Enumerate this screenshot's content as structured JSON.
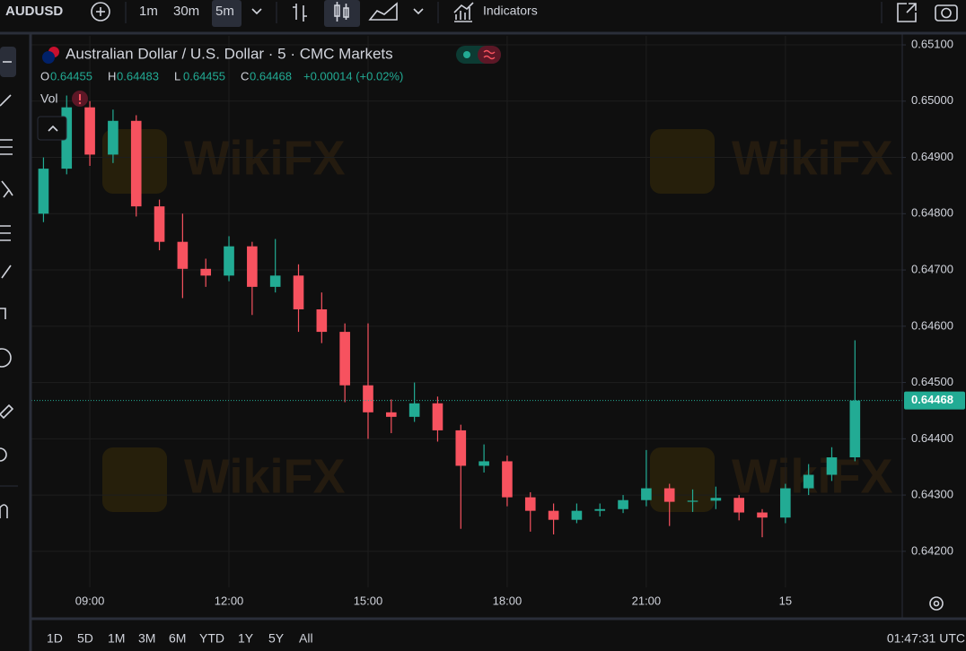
{
  "toolbar": {
    "symbol": "AUDUSD",
    "intervals": [
      "1m",
      "30m",
      "5m"
    ],
    "indicators": "Indicators"
  },
  "legend": {
    "title": "Australian Dollar / U.S. Dollar · 5 · CMC Markets",
    "ohlc": [
      {
        "key": "O",
        "value": "0.64455"
      },
      {
        "key": "H",
        "value": "0.64483"
      },
      {
        "key": "L",
        "value": "0.64455"
      },
      {
        "key": "C",
        "value": "0.64468"
      }
    ],
    "change": "+0.00014 (+0.02%)",
    "volume": "Vol"
  },
  "watermark": "WikiFX",
  "footer": {
    "ranges": [
      "1D",
      "5D",
      "1M",
      "3M",
      "6M",
      "YTD",
      "1Y",
      "5Y",
      "All"
    ],
    "clock": "01:47:31 UTC"
  },
  "chart_data": {
    "type": "candlestick",
    "x": [
      8,
      8.5,
      9,
      9.5,
      10,
      10.5,
      11,
      11.5,
      12,
      12.5,
      13,
      13.5,
      14,
      14.5,
      15,
      15.5,
      16,
      16.5,
      17,
      17.5,
      18,
      18.5,
      19,
      19.5,
      20,
      20.5,
      21,
      21.5,
      22,
      22.5,
      23,
      23.5,
      24,
      24.5,
      25,
      25.5
    ],
    "open": [
      0.648,
      0.6488,
      0.64989,
      0.64905,
      0.64965,
      0.64813,
      0.6475,
      0.64702,
      0.6469,
      0.64742,
      0.6467,
      0.6469,
      0.6463,
      0.6459,
      0.64495,
      0.64447,
      0.64439,
      0.64463,
      0.64415,
      0.64352,
      0.6436,
      0.64296,
      0.64272,
      0.64256,
      0.64272,
      0.64275,
      0.64291,
      0.64312,
      0.64288,
      0.6429,
      0.64295,
      0.64269,
      0.6426,
      0.64312,
      0.64336,
      0.64367
    ],
    "high": [
      0.649,
      0.6501,
      0.65,
      0.64985,
      0.64975,
      0.64825,
      0.648,
      0.6472,
      0.6476,
      0.6475,
      0.64755,
      0.6471,
      0.6466,
      0.64605,
      0.64605,
      0.6447,
      0.645,
      0.64475,
      0.64425,
      0.6439,
      0.6437,
      0.64305,
      0.64285,
      0.64285,
      0.64285,
      0.643,
      0.6438,
      0.6432,
      0.6431,
      0.64315,
      0.643,
      0.64275,
      0.6432,
      0.64355,
      0.64385,
      0.64575
    ],
    "low": [
      0.64785,
      0.6487,
      0.64885,
      0.6489,
      0.64795,
      0.64735,
      0.6465,
      0.6467,
      0.6468,
      0.6462,
      0.6466,
      0.6459,
      0.6457,
      0.64465,
      0.644,
      0.6441,
      0.6443,
      0.64395,
      0.6424,
      0.6434,
      0.6428,
      0.64235,
      0.6423,
      0.6425,
      0.64262,
      0.64268,
      0.6428,
      0.64245,
      0.6427,
      0.64275,
      0.64255,
      0.64225,
      0.6425,
      0.643,
      0.64325,
      0.6436
    ],
    "close": [
      0.6488,
      0.64989,
      0.64905,
      0.64965,
      0.64813,
      0.6475,
      0.64702,
      0.6469,
      0.64742,
      0.6467,
      0.6469,
      0.6463,
      0.6459,
      0.64495,
      0.64447,
      0.64439,
      0.64463,
      0.64415,
      0.64352,
      0.6436,
      0.64296,
      0.64272,
      0.64256,
      0.64272,
      0.64275,
      0.64291,
      0.64312,
      0.64288,
      0.6429,
      0.64295,
      0.64269,
      0.6426,
      0.64312,
      0.64336,
      0.64367,
      0.64468
    ],
    "up_color": "#22ab94",
    "down_color": "#f7525f",
    "xlim": [
      7.74,
      26.52
    ],
    "xticks": [
      {
        "value": 9,
        "label": "09:00"
      },
      {
        "value": 12,
        "label": "12:00"
      },
      {
        "value": 15,
        "label": "15:00"
      },
      {
        "value": 18,
        "label": "18:00"
      },
      {
        "value": 21,
        "label": "21:00"
      },
      {
        "value": 24,
        "label": "15"
      }
    ],
    "ylim": [
      0.64136,
      0.65116
    ],
    "yticks": [
      {
        "value": 0.642,
        "label": "0.64200"
      },
      {
        "value": 0.643,
        "label": "0.64300"
      },
      {
        "value": 0.644,
        "label": "0.64400"
      },
      {
        "value": 0.645,
        "label": "0.64500"
      },
      {
        "value": 0.646,
        "label": "0.64600"
      },
      {
        "value": 0.647,
        "label": "0.64700"
      },
      {
        "value": 0.648,
        "label": "0.64800"
      },
      {
        "value": 0.649,
        "label": "0.64900"
      },
      {
        "value": 0.65,
        "label": "0.65000"
      },
      {
        "value": 0.651,
        "label": "0.65100"
      }
    ],
    "grid": true,
    "last_price": {
      "value": 0.64468,
      "label": "0.64468"
    }
  }
}
